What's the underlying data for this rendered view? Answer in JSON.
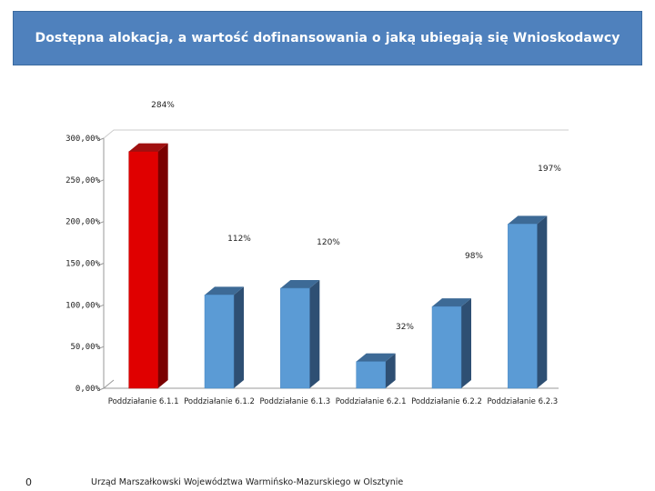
{
  "header": {
    "title": "Dostępna alokacja, a wartość dofinansowania o jaką ubiegają się Wnioskodawcy"
  },
  "footer": {
    "slide_number": "0",
    "institution": "Urząd Marszałkowski Województwa Warmińsko-Mazurskiego w Olsztynie"
  },
  "colors": {
    "highlight_bar": "#e00000",
    "highlight_side": "#7a0000",
    "highlight_top": "#a01010",
    "bar": "#5b9bd5",
    "bar_side": "#2e4f73",
    "bar_top": "#3d6a96",
    "axis": "#999999"
  },
  "chart_data": {
    "type": "bar",
    "categories": [
      "Poddziałanie 6.1.1",
      "Poddziałanie 6.1.2",
      "Poddziałanie 6.1.3",
      "Poddziałanie 6.2.1",
      "Poddziałanie 6.2.2",
      "Poddziałanie 6.2.3"
    ],
    "values": [
      284,
      112,
      120,
      32,
      98,
      197
    ],
    "data_labels": [
      "284%",
      "112%",
      "120%",
      "32%",
      "98%",
      "197%"
    ],
    "y_ticks": [
      {
        "value": 0,
        "label": "0,00%"
      },
      {
        "value": 50,
        "label": "50,00%"
      },
      {
        "value": 100,
        "label": "100,00%"
      },
      {
        "value": 150,
        "label": "150,00%"
      },
      {
        "value": 200,
        "label": "200,00%"
      },
      {
        "value": 250,
        "label": "250,00%"
      },
      {
        "value": 300,
        "label": "300,00%"
      }
    ],
    "ylim": [
      0,
      300
    ],
    "grid": false,
    "legend": "none",
    "style": "3d-column",
    "highlight_index": 0
  }
}
